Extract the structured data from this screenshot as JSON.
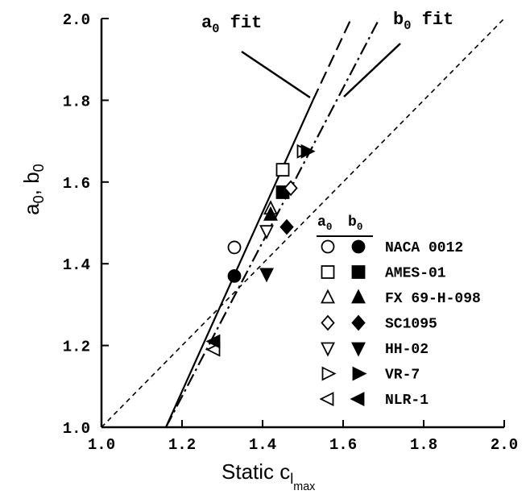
{
  "chart_data": {
    "type": "scatter",
    "xlabel": {
      "main": "Static c",
      "sub1": "l",
      "sub2": "max"
    },
    "ylabel": {
      "a": "a",
      "a_sub": "0",
      "sep": ", ",
      "b": "b",
      "b_sub": "0"
    },
    "xlim": [
      1.0,
      2.0
    ],
    "ylim": [
      1.0,
      2.0
    ],
    "xticks": [
      "1.0",
      "1.2",
      "1.4",
      "1.6",
      "1.8",
      "2.0"
    ],
    "yticks": [
      "1.0",
      "1.2",
      "1.4",
      "1.6",
      "1.8",
      "2.0"
    ],
    "grid": false,
    "legend": {
      "placement": "lower-right",
      "header": {
        "a": "a",
        "a_sub": "0",
        "b": "b",
        "b_sub": "0"
      },
      "entries": [
        "NACA 0012",
        "AMES-01",
        "FX 69-H-098",
        "SC1095",
        "HH-02",
        "VR-7",
        "NLR-1"
      ]
    },
    "fit_labels": {
      "a0": {
        "main": "a",
        "sub": "0",
        "rest": " fit"
      },
      "b0": {
        "main": "b",
        "sub": "0",
        "rest": " fit"
      }
    },
    "lines": [
      {
        "id": "a0-fit",
        "style": "solid",
        "from": [
          1.16,
          1.0
        ],
        "to": [
          1.525,
          1.8
        ]
      },
      {
        "id": "a0-fit-ext",
        "style": "long-dash",
        "from": [
          1.525,
          1.8
        ],
        "to": [
          1.62,
          2.0
        ]
      },
      {
        "id": "b0-fit",
        "style": "dash-dot",
        "from": [
          1.16,
          1.0
        ],
        "to": [
          1.69,
          2.0
        ]
      },
      {
        "id": "unity",
        "style": "short-dash",
        "from": [
          1.0,
          1.0
        ],
        "to": [
          2.0,
          2.0
        ]
      }
    ],
    "markers": [
      "circle",
      "square",
      "triangle-up",
      "diamond",
      "triangle-down",
      "triangle-right",
      "triangle-left"
    ],
    "series": [
      {
        "name": "NACA 0012",
        "a0": [
          [
            1.33,
            1.44
          ]
        ],
        "b0": [
          [
            1.33,
            1.37
          ]
        ]
      },
      {
        "name": "AMES-01",
        "a0": [
          [
            1.45,
            1.63
          ]
        ],
        "b0": [
          [
            1.45,
            1.575
          ]
        ]
      },
      {
        "name": "FX 69-H-098",
        "a0": [
          [
            1.42,
            1.535
          ]
        ],
        "b0": [
          [
            1.42,
            1.52
          ]
        ]
      },
      {
        "name": "SC1095",
        "a0": [
          [
            1.47,
            1.585
          ]
        ],
        "b0": [
          [
            1.46,
            1.49
          ]
        ]
      },
      {
        "name": "HH-02",
        "a0": [
          [
            1.41,
            1.48
          ]
        ],
        "b0": [
          [
            1.41,
            1.375
          ]
        ]
      },
      {
        "name": "VR-7",
        "a0": [
          [
            1.5,
            1.675
          ]
        ],
        "b0": [
          [
            1.51,
            1.675
          ]
        ]
      },
      {
        "name": "NLR-1",
        "a0": [
          [
            1.28,
            1.19
          ]
        ],
        "b0": [
          [
            1.28,
            1.21
          ]
        ]
      }
    ]
  }
}
